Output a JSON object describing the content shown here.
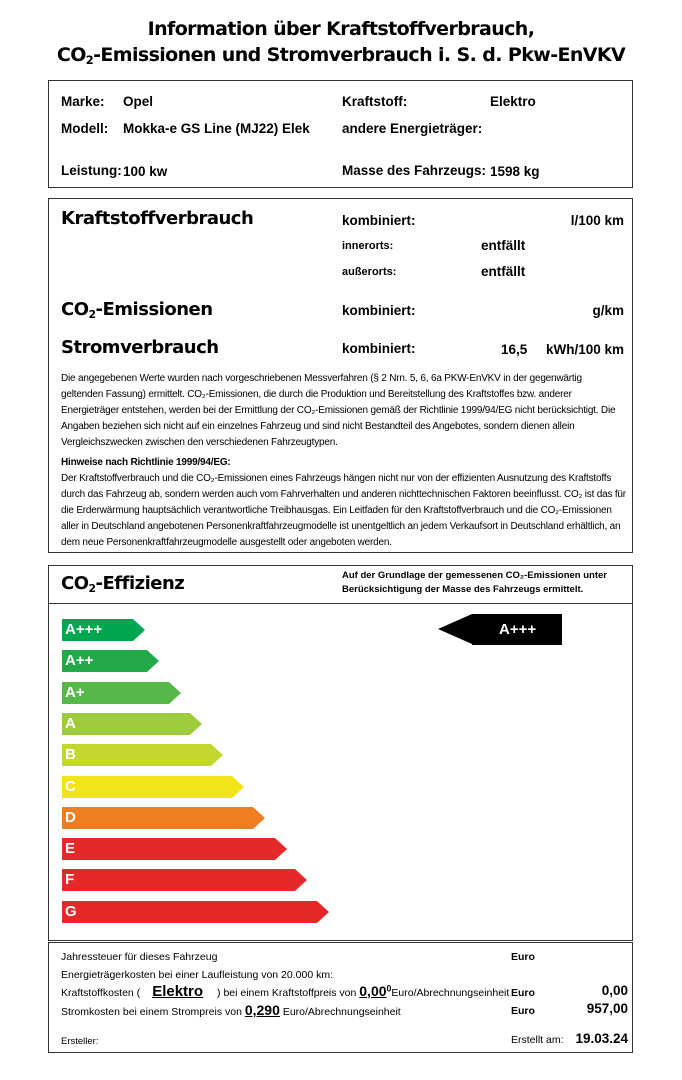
{
  "title": {
    "line1": "Information über Kraftstoffverbrauch,",
    "line2_pre": "CO",
    "line2_sub": "2",
    "line2_post": "-Emissionen und Stromverbrauch i. S. d. Pkw-EnVKV"
  },
  "vehicle": {
    "marke_label": "Marke:",
    "marke": "Opel",
    "modell_label": "Modell:",
    "modell": "Mokka-e GS Line (MJ22) Elek",
    "leistung_label": "Leistung:",
    "leistung": "100 kw",
    "kraftstoff_label": "Kraftstoff:",
    "kraftstoff": "Elektro",
    "andere_label": "andere Energieträger:",
    "masse_label": "Masse des Fahrzeugs:",
    "masse": "1598 kg"
  },
  "consumption": {
    "kv_title": "Kraftstoffverbrauch",
    "kombiniert": "kombiniert:",
    "kv_unit": "l/100 km",
    "innerorts": "innerorts:",
    "innerorts_val": "entfällt",
    "ausserorts": "außerorts:",
    "ausserorts_val": "entfällt",
    "co2_pre": "CO",
    "co2_sub": "2",
    "co2_post": "-Emissionen",
    "co2_unit": "g/km",
    "strom_title": "Stromverbrauch",
    "strom_val": "16,5",
    "strom_unit": "kWh/100 km"
  },
  "notes": {
    "p1": "Die angegebenen Werte wurden nach vorgeschriebenen Messverfahren (§ 2 Nrn. 5, 6, 6a PKW-EnVKV in der gegenwärtig geltenden Fassung) ermittelt. CO₂-Emissionen, die durch die Produktion und Bereitstellung des Kraftstoffes bzw. anderer Energieträger entstehen, werden bei der Ermittlung der CO₂-Emissionen gemäß der Richtlinie 1999/94/EG nicht berücksichtigt. Die Angaben beziehen sich nicht auf ein einzelnes Fahrzeug und sind nicht Bestandteil des Angebotes, sondern dienen allein Vergleichszwecken zwischen den verschiedenen Fahrzeugtypen.",
    "h2": "Hinweise nach Richtlinie 1999/94/EG:",
    "p2": "Der Kraftstoffverbrauch und die CO₂-Emissionen eines Fahrzeugs hängen nicht nur von der effizienten Ausnutzung des Kraftstoffs durch das Fahrzeug ab, sondern werden auch vom Fahrverhalten und anderen nichttechnischen Faktoren beeinflusst. CO₂ ist das für die Erderwärmung hauptsächlich verantwortliche Treibhausgas. Ein Leitfaden für den Kraftstoffverbrauch und die CO₂-Emissionen aller in Deutschland angebotenen Personenkraftfahrzeugmodelle ist unentgeltlich an jedem Verkaufsort in Deutschland erhältlich, an dem neue Personenkraftfahrzeugmodelle ausgestellt oder angeboten werden."
  },
  "efficiency": {
    "title_pre": "CO",
    "title_sub": "2",
    "title_post": "-Effizienz",
    "note1": "Auf der Grundlage der gemessenen CO₂-Emissionen unter",
    "note2": "Berücksichtigung der Masse des Fahrzeugs ermittelt.",
    "rating": "A+++",
    "classes": [
      {
        "label": "A+++",
        "color": "#00a650"
      },
      {
        "label": "A++",
        "color": "#22aa4a"
      },
      {
        "label": "A+",
        "color": "#56b848"
      },
      {
        "label": "A",
        "color": "#9dcb3c"
      },
      {
        "label": "B",
        "color": "#c4d72e"
      },
      {
        "label": "C",
        "color": "#f2e416"
      },
      {
        "label": "D",
        "color": "#ef7d22"
      },
      {
        "label": "E",
        "color": "#e5282a"
      },
      {
        "label": "F",
        "color": "#e5282a"
      },
      {
        "label": "G",
        "color": "#e5282a"
      }
    ]
  },
  "costs": {
    "steuer": "Jahressteuer für dieses Fahrzeug",
    "euro": "Euro",
    "energie": "Energieträgerkosten bei einer Laufleistung von 20.000 km:",
    "kk_pre": "Kraftstoffkosten (",
    "kk_fuel": "Elektro",
    "kk_mid": ") bei einem Kraftstoffpreis von",
    "kk_price": "0,00",
    "kk_sup": "0",
    "kk_unit": "Euro/Abrechnungseinheit",
    "kk_val": "0,00",
    "sk_pre": "Stromkosten bei einem Strompreis von",
    "sk_price": "0,290",
    "sk_unit": "Euro/Abrechnungseinheit",
    "sk_val": "957,00",
    "ersteller": "Ersteller:",
    "erstellt": "Erstellt am:",
    "datum": "19.03.24"
  }
}
